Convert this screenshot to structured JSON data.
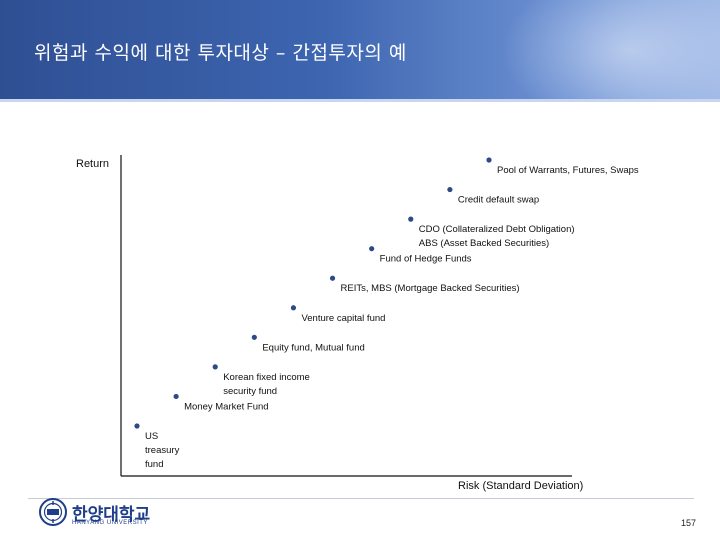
{
  "header": {
    "title": "위험과 수익에 대한 투자대상 – 간접투자의 예"
  },
  "diagram": {
    "y_axis_label": "Return",
    "x_axis_label": "Risk (Standard Deviation)",
    "items": [
      {
        "lines": [
          "US",
          "treasury",
          "fund"
        ]
      },
      {
        "lines": [
          "Money Market Fund"
        ]
      },
      {
        "lines": [
          "Korean fixed income",
          "security fund"
        ]
      },
      {
        "lines": [
          "Equity fund, Mutual fund"
        ]
      },
      {
        "lines": [
          "Venture capital fund"
        ]
      },
      {
        "lines": [
          "REITs, MBS (Mortgage Backed Securities)"
        ]
      },
      {
        "lines": [
          "Fund of Hedge Funds"
        ]
      },
      {
        "lines": [
          "CDO  (Collateralized Debt Obligation)",
          "ABS (Asset Backed Securities)"
        ]
      },
      {
        "lines": [
          "Credit default swap"
        ]
      },
      {
        "lines": [
          "Pool of Warrants, Futures, Swaps"
        ]
      }
    ],
    "dot_color": "#2b4a86"
  },
  "footer": {
    "logo_text": "한양대학교",
    "logo_sub": "HANYANG UNIVERSITY",
    "page_number": "157"
  }
}
